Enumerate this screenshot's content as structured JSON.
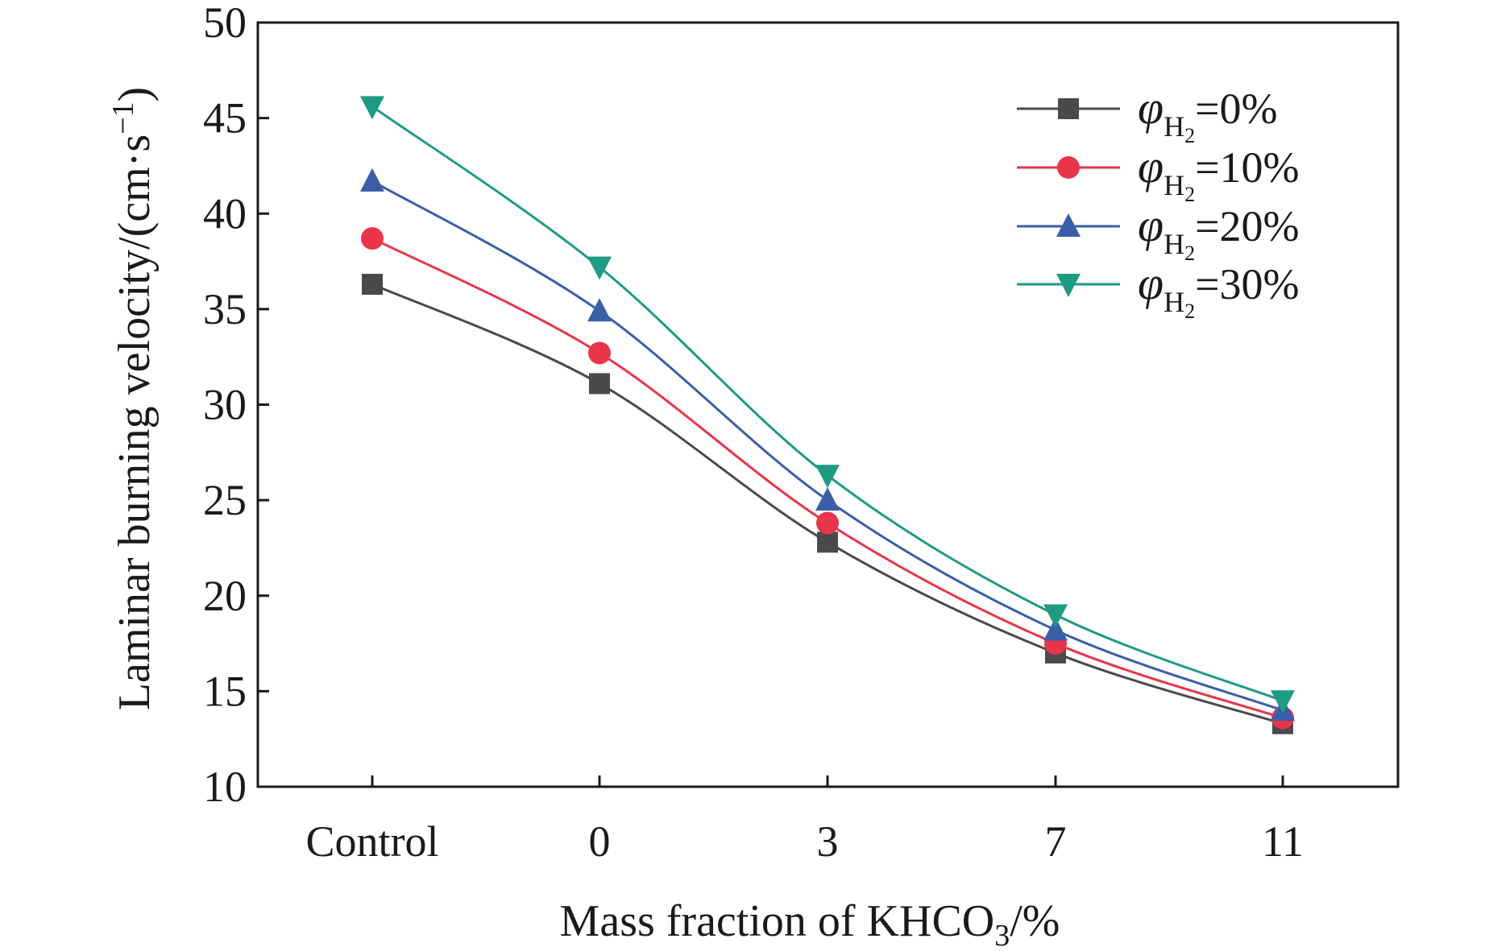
{
  "chart_data": {
    "type": "line",
    "categories": [
      "Control",
      "0",
      "3",
      "7",
      "11"
    ],
    "xlabel": {
      "text": "Mass fraction of KHCO",
      "sub": "3",
      "suffix": "/%"
    },
    "ylabel": {
      "text": "Laminar burning velocity/(cm·s",
      "sup": "−1",
      "suffix": ")"
    },
    "ylim": [
      10,
      50
    ],
    "yticks": [
      10,
      15,
      20,
      25,
      30,
      35,
      40,
      45,
      50
    ],
    "grid": false,
    "legend_position": "top-right",
    "series": [
      {
        "name": "φH2=0%",
        "symbol": "φ",
        "sub": "H",
        "sub2": "2",
        "value_text": "=0%",
        "color": "#4a4a4a",
        "marker": "square",
        "values": [
          36.3,
          31.1,
          22.8,
          17.0,
          13.3
        ]
      },
      {
        "name": "φH2=10%",
        "symbol": "φ",
        "sub": "H",
        "sub2": "2",
        "value_text": "=10%",
        "color": "#e8354a",
        "marker": "circle",
        "values": [
          38.7,
          32.7,
          23.8,
          17.5,
          13.6
        ]
      },
      {
        "name": "φH2=20%",
        "symbol": "φ",
        "sub": "H",
        "sub2": "2",
        "value_text": "=20%",
        "color": "#3a5ea8",
        "marker": "triangle-up",
        "values": [
          41.7,
          34.9,
          25.0,
          18.2,
          14.0
        ]
      },
      {
        "name": "φH2=30%",
        "symbol": "φ",
        "sub": "H",
        "sub2": "2",
        "value_text": "=30%",
        "color": "#1f9a83",
        "marker": "triangle-down",
        "values": [
          45.6,
          37.2,
          26.3,
          19.0,
          14.5
        ]
      }
    ]
  }
}
